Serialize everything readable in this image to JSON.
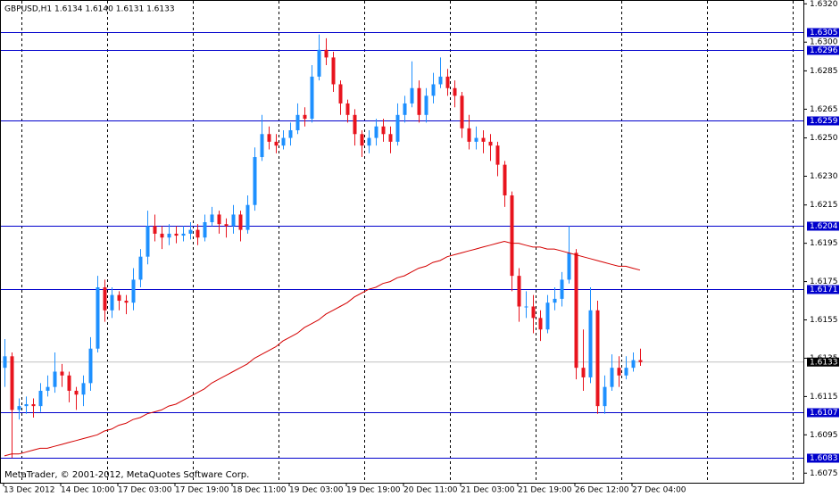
{
  "chart_data": {
    "type": "candlestick",
    "title": "GBPUSD,H1  1.6134 1.6140 1.6131 1.6133",
    "footer": "MetaTrader, © 2001-2012, MetaQuotes Software Corp.",
    "time_labels": [
      "13 Dec 2012",
      "14 Dec 10:00",
      "17 Dec 03:00",
      "17 Dec 19:00",
      "18 Dec 11:00",
      "19 Dec 03:00",
      "19 Dec 19:00",
      "20 Dec 11:00",
      "21 Dec 03:00",
      "21 Dec 19:00",
      "26 Dec 12:00",
      "27 Dec 04:00"
    ],
    "up_color": "#1e90ff",
    "down_color": "#e8141e",
    "open": [
      1.613,
      1.6136,
      1.6108,
      1.611,
      1.6111,
      1.611,
      1.6118,
      1.612,
      1.6128,
      1.6126,
      1.6118,
      1.6116,
      1.6122,
      1.614,
      1.6172,
      1.616,
      1.6168,
      1.6165,
      1.6164,
      1.6176,
      1.6188,
      1.6204,
      1.62,
      1.6198,
      1.62,
      1.6199,
      1.62,
      1.6202,
      1.6198,
      1.6206,
      1.621,
      1.6205,
      1.6204,
      1.621,
      1.6202,
      1.6215,
      1.624,
      1.6252,
      1.6248,
      1.6246,
      1.625,
      1.6254,
      1.6262,
      1.626,
      1.6282,
      1.6296,
      1.6292,
      1.6278,
      1.6268,
      1.6262,
      1.6252,
      1.6246,
      1.625,
      1.6256,
      1.6252,
      1.6248,
      1.6262,
      1.6268,
      1.6276,
      1.6262,
      1.6272,
      1.6278,
      1.6282,
      1.6276,
      1.6272,
      1.6255,
      1.6248,
      1.625,
      1.6248,
      1.6246,
      1.6236,
      1.622,
      1.6178,
      1.6162,
      1.6162,
      1.6156,
      1.615,
      1.6164,
      1.6166,
      1.6176,
      1.619,
      1.613,
      1.6125,
      1.616,
      1.611,
      1.612,
      1.613,
      1.6126,
      1.613,
      1.6134
    ],
    "high": [
      1.6145,
      1.6138,
      1.6114,
      1.6115,
      1.6114,
      1.6122,
      1.6126,
      1.6138,
      1.6132,
      1.6128,
      1.612,
      1.6126,
      1.6146,
      1.6178,
      1.6176,
      1.6172,
      1.617,
      1.6168,
      1.6182,
      1.6192,
      1.6212,
      1.621,
      1.6204,
      1.6205,
      1.6204,
      1.6204,
      1.6206,
      1.6205,
      1.621,
      1.6214,
      1.6212,
      1.6208,
      1.6215,
      1.6212,
      1.622,
      1.6245,
      1.6262,
      1.6256,
      1.6252,
      1.6254,
      1.6258,
      1.6268,
      1.6266,
      1.6288,
      1.6304,
      1.6302,
      1.6295,
      1.628,
      1.627,
      1.6265,
      1.6254,
      1.6254,
      1.626,
      1.626,
      1.6256,
      1.6268,
      1.6272,
      1.629,
      1.628,
      1.6276,
      1.6284,
      1.6292,
      1.6286,
      1.628,
      1.6274,
      1.6262,
      1.6256,
      1.6254,
      1.6252,
      1.6248,
      1.6238,
      1.6222,
      1.6182,
      1.617,
      1.6168,
      1.616,
      1.6168,
      1.6172,
      1.618,
      1.6204,
      1.6192,
      1.615,
      1.6172,
      1.6165,
      1.6126,
      1.6137,
      1.6136,
      1.6136,
      1.6138,
      1.614
    ],
    "low": [
      1.612,
      1.6083,
      1.6103,
      1.6106,
      1.6104,
      1.6107,
      1.6115,
      1.6117,
      1.612,
      1.6112,
      1.6108,
      1.611,
      1.6118,
      1.6138,
      1.6154,
      1.6156,
      1.616,
      1.6158,
      1.616,
      1.6172,
      1.6184,
      1.6196,
      1.6192,
      1.6194,
      1.6195,
      1.6196,
      1.6197,
      1.6194,
      1.6196,
      1.6204,
      1.62,
      1.6198,
      1.62,
      1.6196,
      1.62,
      1.6212,
      1.6238,
      1.6244,
      1.6242,
      1.6244,
      1.6246,
      1.6252,
      1.6256,
      1.6258,
      1.628,
      1.6288,
      1.6274,
      1.6262,
      1.6258,
      1.6246,
      1.624,
      1.6242,
      1.6246,
      1.6248,
      1.6242,
      1.6246,
      1.6258,
      1.6266,
      1.6258,
      1.6258,
      1.6268,
      1.6276,
      1.6272,
      1.6266,
      1.625,
      1.6244,
      1.6244,
      1.6242,
      1.6238,
      1.623,
      1.6214,
      1.617,
      1.6154,
      1.6156,
      1.6148,
      1.6144,
      1.6148,
      1.616,
      1.6162,
      1.6174,
      1.6124,
      1.6118,
      1.6122,
      1.6106,
      1.6106,
      1.6118,
      1.612,
      1.6124,
      1.6128,
      1.6131
    ],
    "close": [
      1.6136,
      1.6108,
      1.611,
      1.6111,
      1.611,
      1.6118,
      1.612,
      1.6128,
      1.6126,
      1.6118,
      1.6116,
      1.6122,
      1.614,
      1.6172,
      1.616,
      1.6168,
      1.6165,
      1.6164,
      1.6176,
      1.6188,
      1.6204,
      1.62,
      1.6198,
      1.62,
      1.6199,
      1.62,
      1.6202,
      1.6198,
      1.6206,
      1.621,
      1.6205,
      1.6204,
      1.621,
      1.6202,
      1.6215,
      1.624,
      1.6252,
      1.6248,
      1.6246,
      1.625,
      1.6254,
      1.6262,
      1.626,
      1.6282,
      1.6296,
      1.6292,
      1.6278,
      1.6268,
      1.6262,
      1.6252,
      1.6246,
      1.625,
      1.6256,
      1.6252,
      1.6248,
      1.6262,
      1.6268,
      1.6276,
      1.6262,
      1.6272,
      1.6278,
      1.6282,
      1.6276,
      1.6272,
      1.6255,
      1.6248,
      1.625,
      1.6248,
      1.6246,
      1.6236,
      1.622,
      1.6178,
      1.6162,
      1.6162,
      1.6156,
      1.615,
      1.6164,
      1.6166,
      1.6176,
      1.619,
      1.613,
      1.6125,
      1.616,
      1.611,
      1.612,
      1.613,
      1.6126,
      1.613,
      1.6134,
      1.6133
    ],
    "ma": {
      "color": "#d40000",
      "values": [
        1.6084,
        1.6085,
        1.6085,
        1.6086,
        1.6087,
        1.6088,
        1.6088,
        1.6089,
        1.609,
        1.6091,
        1.6092,
        1.6093,
        1.6094,
        1.6095,
        1.6097,
        1.6098,
        1.61,
        1.6101,
        1.6103,
        1.6104,
        1.6106,
        1.6107,
        1.6108,
        1.611,
        1.6111,
        1.6113,
        1.6115,
        1.6117,
        1.6119,
        1.6122,
        1.6124,
        1.6126,
        1.6128,
        1.613,
        1.6132,
        1.6135,
        1.6137,
        1.6139,
        1.6141,
        1.6144,
        1.6146,
        1.6148,
        1.6151,
        1.6153,
        1.6155,
        1.6158,
        1.616,
        1.6162,
        1.6164,
        1.6167,
        1.6169,
        1.6171,
        1.6172,
        1.6174,
        1.6175,
        1.6177,
        1.6178,
        1.618,
        1.6182,
        1.6183,
        1.6185,
        1.6186,
        1.6188,
        1.6189,
        1.619,
        1.6191,
        1.6192,
        1.6193,
        1.6194,
        1.6195,
        1.6196,
        1.6195,
        1.6195,
        1.6194,
        1.6193,
        1.6193,
        1.6192,
        1.6192,
        1.6191,
        1.619,
        1.6189,
        1.6188,
        1.6187,
        1.6186,
        1.6185,
        1.6184,
        1.6183,
        1.6183,
        1.6182,
        1.6181
      ]
    },
    "levels": {
      "color": "#0000cc",
      "values": [
        1.6305,
        1.6296,
        1.6259,
        1.6204,
        1.6171,
        1.6107,
        1.6083
      ]
    },
    "current_price": 1.6133,
    "ylim": [
      1.607,
      1.6322
    ],
    "yticks": [
      {
        "value": 1.632,
        "label": "1.6320"
      },
      {
        "value": 1.63,
        "label": "1.6300"
      },
      {
        "value": 1.6285,
        "label": "1.6285"
      },
      {
        "value": 1.6265,
        "label": "1.6265"
      },
      {
        "value": 1.625,
        "label": "1.6250"
      },
      {
        "value": 1.623,
        "label": "1.6230"
      },
      {
        "value": 1.6215,
        "label": "1.6215"
      },
      {
        "value": 1.6195,
        "label": "1.6195"
      },
      {
        "value": 1.6175,
        "label": "1.6175"
      },
      {
        "value": 1.6155,
        "label": "1.6155"
      },
      {
        "value": 1.6135,
        "label": "1.6135"
      },
      {
        "value": 1.6115,
        "label": "1.6115"
      },
      {
        "value": 1.6095,
        "label": "1.6095"
      },
      {
        "value": 1.6075,
        "label": "1.6075"
      }
    ]
  }
}
